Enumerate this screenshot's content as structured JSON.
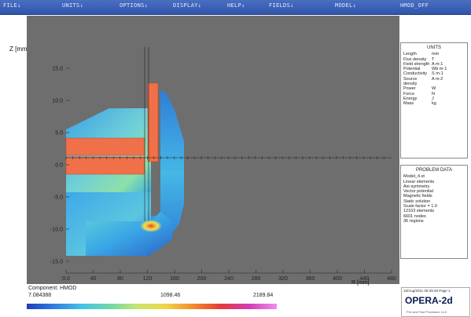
{
  "menu": [
    "FILE↓",
    "UNITS↓",
    "OPTIONS↓",
    "DISPLAY↓",
    "HELP↓",
    "FIELDS↓",
    "MODEL↓",
    "HMOD_OFF"
  ],
  "axis": {
    "z_label": "Z [mm]",
    "r_label": "R [mm]",
    "z_ticks": [
      "15.0",
      "10.0",
      "5.0",
      "0.0",
      "-5.0",
      "-10.0",
      "-15.0"
    ],
    "r_ticks": [
      "0.0",
      "40",
      "80",
      "120",
      "160",
      "200",
      "240",
      "280",
      "320",
      "360",
      "400",
      "440",
      "480"
    ]
  },
  "units_panel": {
    "title": "UNITS",
    "rows": [
      [
        "Length",
        "mm"
      ],
      [
        "Flux density",
        "T"
      ],
      [
        "Field strength",
        "A m-1"
      ],
      [
        "Potential",
        "Wb m-1"
      ],
      [
        "Conductivity",
        "S m-1"
      ],
      [
        "Source density",
        "A m-2"
      ],
      [
        "Power",
        "W"
      ],
      [
        "Force",
        "N"
      ],
      [
        "Energy",
        "J"
      ],
      [
        "Mass",
        "kg"
      ]
    ]
  },
  "problem_panel": {
    "title": "PROBLEM DATA",
    "lines": [
      "Model_4.st",
      "Linear elements",
      "Axi-symmetry",
      "Vector potential",
      "Magnetic fields",
      "Static solution",
      "Scale factor = 1.0",
      "12163 elements",
      "6601 nodes",
      "36 regions"
    ]
  },
  "legend": {
    "component": "Component: HMOD",
    "min": "7.084388",
    "mid": "1098.46",
    "max": "2189.84"
  },
  "footer": {
    "date": "16/Aug/2011 08:39:48 Page 1",
    "logo": "OPERA-2d",
    "sub": "Pre and Post Processor 14.0"
  },
  "colors": {
    "background": "#6e6e6e",
    "coil": "#f0704a",
    "menubar": "#2f55ad"
  }
}
